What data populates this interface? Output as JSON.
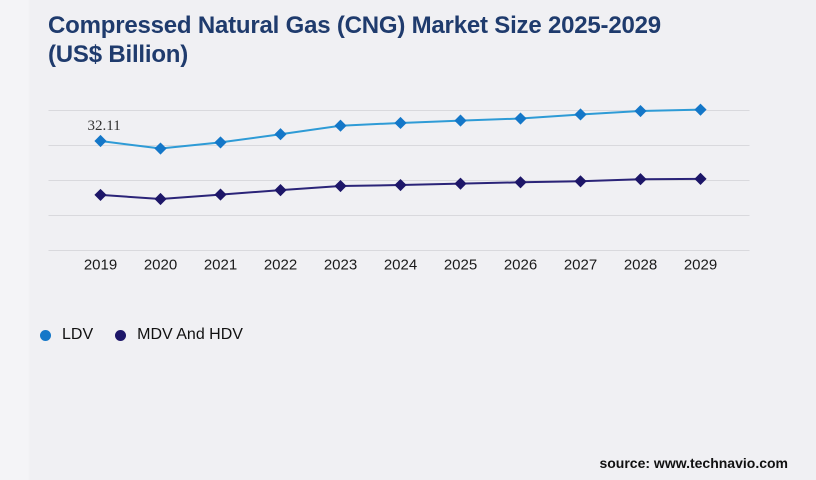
{
  "page": {
    "background_color": "#f0f0f3",
    "source_text": "source: www.technavio.com"
  },
  "header": {
    "title": "Compressed Natural Gas (CNG) Market Size 2025-2029 (US$ Billion)",
    "title_color": "#1f3b6d"
  },
  "chart_data": {
    "type": "line",
    "title": "Compressed Natural Gas (CNG) Market Size 2025-2029 (US$ Billion)",
    "unit": "US$ Billion",
    "categories": [
      "2019",
      "2020",
      "2021",
      "2022",
      "2023",
      "2024",
      "2025",
      "2026",
      "2027",
      "2028",
      "2029"
    ],
    "series": [
      {
        "name": "LDV",
        "line_color": "#2e9bd6",
        "marker_color": "#1477c8",
        "marker": "diamond",
        "values": [
          32.11,
          29.9,
          31.7,
          34.1,
          36.6,
          37.4,
          38.1,
          38.7,
          39.9,
          40.9,
          41.3
        ]
      },
      {
        "name": "MDV And HDV",
        "line_color": "#2b2478",
        "marker_color": "#1d1668",
        "marker": "diamond",
        "values": [
          16.3,
          15.1,
          16.4,
          17.7,
          18.9,
          19.2,
          19.6,
          20.0,
          20.3,
          20.9,
          21.0
        ]
      }
    ],
    "annotations": [
      {
        "series": "LDV",
        "category": "2019",
        "text": "32.11"
      }
    ],
    "grid": true,
    "grid_color": "#d9d9dd",
    "axis_label_color": "#1a1a1a",
    "annotation_color": "#333333",
    "x_axis_ticks_visible": true,
    "y_axis_visible": false,
    "legend_position": "bottom-left",
    "ylim_estimate": [
      0,
      41.3
    ]
  }
}
